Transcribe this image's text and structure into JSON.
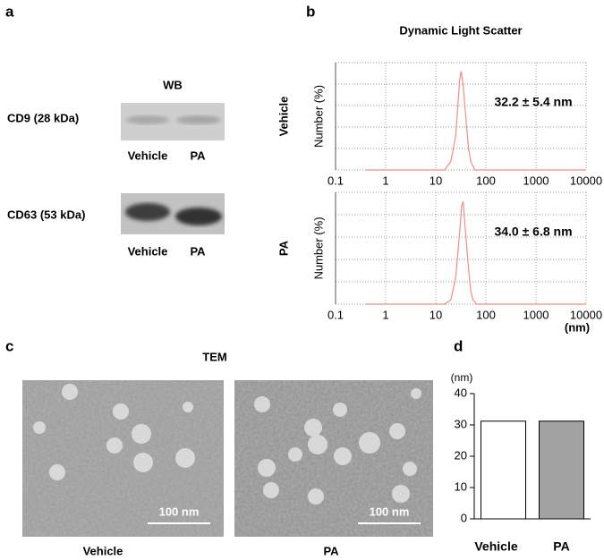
{
  "panel_labels": [
    "a",
    "b",
    "c",
    "d"
  ],
  "wb": {
    "title": "WB",
    "bands": [
      "CD9 (28 kDa)",
      "CD63 (53 kDa)"
    ],
    "lanes": [
      "Vehicle",
      "PA"
    ]
  },
  "tem": {
    "title": "TEM",
    "images": [
      "Vehicle",
      "PA"
    ],
    "scale_bar": "100 nm"
  },
  "chart_data": [
    {
      "type": "line",
      "title": "Dynamic Light Scatter",
      "row_label": "Vehicle",
      "y_label": "Number (%)",
      "annotation": "32.2 ± 5.4 nm",
      "x": [
        0.4,
        15,
        20,
        25,
        28,
        30,
        32,
        35,
        40,
        45,
        50,
        60,
        10000
      ],
      "values": [
        0,
        0,
        2,
        8,
        16,
        21,
        23,
        20,
        12,
        5,
        2,
        0,
        0
      ],
      "color": "#f08c8c",
      "xscale": "log",
      "xlim": [
        0.1,
        10000
      ],
      "xticks": [
        0.1,
        1,
        10,
        100,
        1000,
        10000
      ],
      "ylim": [
        0,
        25
      ],
      "grid": true
    },
    {
      "type": "line",
      "row_label": "PA",
      "y_label": "Number (%)",
      "annotation": "34.0 ± 6.8 nm",
      "x_label": "(nm)",
      "x": [
        0.4,
        15,
        20,
        25,
        30,
        33,
        35,
        38,
        45,
        50,
        55,
        65,
        10000
      ],
      "values": [
        0,
        0,
        1,
        6,
        16,
        22,
        23,
        18,
        8,
        3,
        1,
        0,
        0
      ],
      "color": "#f08c8c",
      "xscale": "log",
      "xlim": [
        0.1,
        10000
      ],
      "xticks": [
        0.1,
        1,
        10,
        100,
        1000,
        10000
      ],
      "ylim": [
        0,
        25
      ],
      "grid": true
    },
    {
      "type": "bar",
      "y_label": "(nm)",
      "categories": [
        "Vehicle",
        "PA"
      ],
      "values": [
        31.2,
        31.2
      ],
      "colors": [
        "#ffffff",
        "#a3a3a3"
      ],
      "ylim": [
        0,
        40
      ],
      "yticks": [
        0,
        10,
        20,
        30,
        40
      ]
    }
  ]
}
